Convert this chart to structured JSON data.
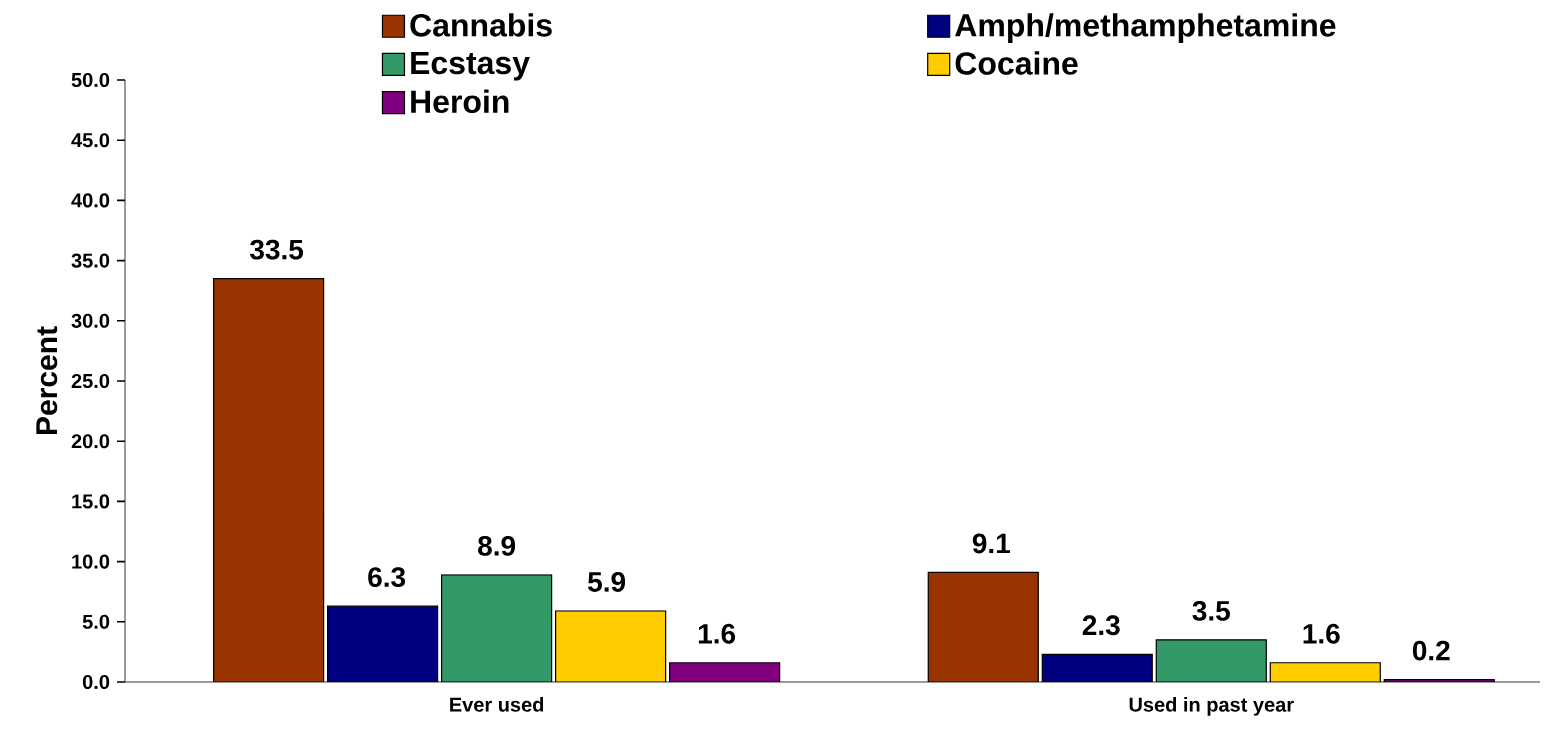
{
  "chart_data": {
    "type": "bar",
    "ylabel": "Percent",
    "categories": [
      "Ever used",
      "Used in past year"
    ],
    "series": [
      {
        "name": "Cannabis",
        "color": "#993300",
        "values": [
          33.5,
          9.1
        ]
      },
      {
        "name": "Amph/methamphetamine",
        "color": "#000080",
        "values": [
          6.3,
          2.3
        ]
      },
      {
        "name": "Ecstasy",
        "color": "#339966",
        "values": [
          8.9,
          3.5
        ]
      },
      {
        "name": "Cocaine",
        "color": "#ffcc00",
        "values": [
          5.9,
          1.6
        ]
      },
      {
        "name": "Heroin",
        "color": "#800080",
        "values": [
          1.6,
          0.2
        ]
      }
    ],
    "ylim": [
      0,
      50
    ],
    "yticks": [
      {
        "value": 0,
        "label": "0.0"
      },
      {
        "value": 5,
        "label": "5.0"
      },
      {
        "value": 10,
        "label": "10.0"
      },
      {
        "value": 15,
        "label": "15.0"
      },
      {
        "value": 20,
        "label": "20.0"
      },
      {
        "value": 25,
        "label": "25.0"
      },
      {
        "value": 30,
        "label": "30.0"
      },
      {
        "value": 35,
        "label": "35.0"
      },
      {
        "value": 40,
        "label": "40.0"
      },
      {
        "value": 45,
        "label": "45.0"
      },
      {
        "value": 50,
        "label": "50.0"
      }
    ],
    "data_labels": true,
    "grid": false,
    "legend": "top"
  }
}
